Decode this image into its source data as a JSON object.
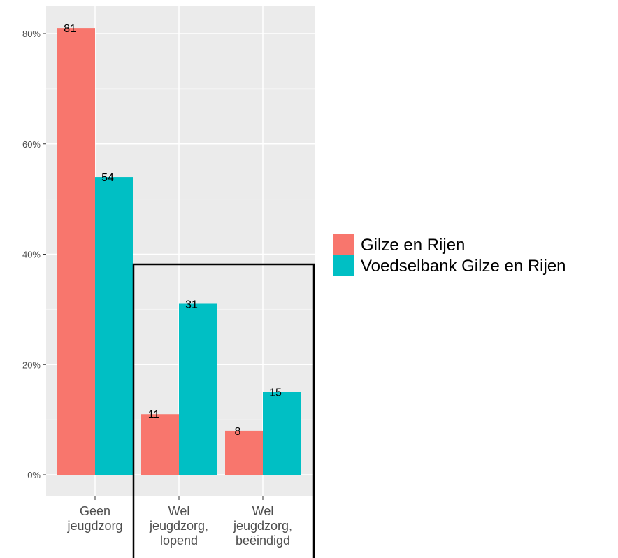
{
  "chart_data": {
    "type": "bar",
    "title": "",
    "xlabel": "",
    "ylabel": "",
    "ylim": [
      0,
      85
    ],
    "y_ticks": [
      0,
      20,
      40,
      60,
      80
    ],
    "y_tick_labels": [
      "0%",
      "20%",
      "40%",
      "60%",
      "80%"
    ],
    "grid": true,
    "legend_position": "right",
    "categories": [
      [
        "Geen",
        "jeugdzorg"
      ],
      [
        "Wel",
        "jeugdzorg,",
        "lopend"
      ],
      [
        "Wel",
        "jeugdzorg,",
        "beëindigd"
      ]
    ],
    "series": [
      {
        "name": "Gilze en Rijen",
        "color": "#F8766D",
        "values": [
          81,
          11,
          8
        ],
        "labels": [
          "81",
          "11",
          "8"
        ]
      },
      {
        "name": "Voedselbank Gilze en Rijen",
        "color": "#00BFC4",
        "values": [
          54,
          31,
          15
        ],
        "labels": [
          "54",
          "31",
          "15"
        ]
      }
    ],
    "highlight_box": {
      "categories": [
        [
          "Wel",
          "jeugdzorg,",
          "lopend"
        ],
        [
          "Wel",
          "jeugdzorg,",
          "beëindigd"
        ]
      ]
    }
  },
  "colors": {
    "panel_background": "#EBEBEB",
    "grid_major": "#FFFFFF",
    "grid_minor": "#F5F5F5",
    "axis_text": "#4D4D4D",
    "highlight_box": "#000000"
  }
}
